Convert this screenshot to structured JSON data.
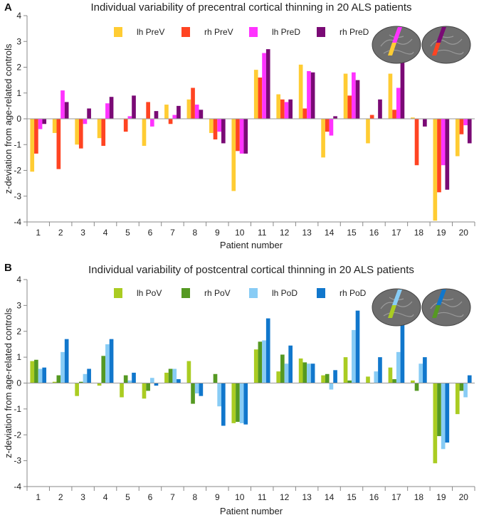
{
  "chart_data": [
    {
      "panel_label": "A",
      "type": "bar",
      "title": "Individual variability of precentral cortical thinning in 20 ALS patients",
      "xlabel": "Patient number",
      "ylabel": "z-deviation from age-related controls",
      "ylim": [
        -4,
        4
      ],
      "yticks": [
        -4,
        -3,
        -2,
        -1,
        0,
        1,
        2,
        3,
        4
      ],
      "categories": [
        "1",
        "2",
        "3",
        "4",
        "5",
        "6",
        "7",
        "8",
        "9",
        "10",
        "11",
        "12",
        "13",
        "14",
        "15",
        "16",
        "17",
        "18",
        "19",
        "20"
      ],
      "legend_position": "top",
      "series": [
        {
          "name": "lh PreV",
          "color": "#FFCC33",
          "values": [
            -2.05,
            -0.55,
            -1.0,
            -0.75,
            0.0,
            -1.05,
            0.55,
            0.75,
            -0.55,
            -2.8,
            1.9,
            0.95,
            2.1,
            -1.5,
            1.75,
            -0.95,
            1.75,
            0.05,
            -3.95,
            -1.45
          ]
        },
        {
          "name": "rh PreV",
          "color": "#FF4422",
          "values": [
            -1.35,
            -1.95,
            -1.15,
            -1.05,
            -0.5,
            0.65,
            -0.2,
            1.2,
            -0.8,
            -1.25,
            1.6,
            0.75,
            0.4,
            -0.5,
            0.9,
            0.15,
            0.35,
            -1.8,
            -2.85,
            -0.6
          ]
        },
        {
          "name": "lh PreD",
          "color": "#FF33FF",
          "values": [
            -0.4,
            1.1,
            -0.2,
            0.6,
            0.1,
            -0.3,
            0.15,
            0.55,
            -0.5,
            -1.35,
            2.55,
            0.65,
            1.85,
            -0.65,
            1.8,
            0.0,
            1.2,
            0.0,
            -1.8,
            -0.25
          ]
        },
        {
          "name": "rh PreD",
          "color": "#7A0A75",
          "values": [
            -0.2,
            0.65,
            0.4,
            0.85,
            0.9,
            0.3,
            0.5,
            0.35,
            -0.95,
            -1.35,
            2.7,
            0.75,
            1.8,
            0.1,
            1.5,
            0.75,
            2.2,
            -0.3,
            -2.75,
            -0.95
          ]
        }
      ]
    },
    {
      "panel_label": "B",
      "type": "bar",
      "title": "Individual variability of postcentral cortical thinning in 20 ALS patients",
      "xlabel": "Patient number",
      "ylabel": "z-deviation from age-related controls",
      "ylim": [
        -4,
        4
      ],
      "yticks": [
        -4,
        -3,
        -2,
        -1,
        0,
        1,
        2,
        3,
        4
      ],
      "categories": [
        "1",
        "2",
        "3",
        "4",
        "5",
        "6",
        "7",
        "8",
        "9",
        "10",
        "11",
        "12",
        "13",
        "14",
        "15",
        "16",
        "17",
        "18",
        "19",
        "20"
      ],
      "legend_position": "top",
      "series": [
        {
          "name": "lh PoV",
          "color": "#AACC22",
          "values": [
            0.85,
            0.05,
            -0.5,
            -0.1,
            -0.55,
            -0.6,
            0.4,
            0.85,
            0.0,
            -1.55,
            1.3,
            0.45,
            0.95,
            0.3,
            1.0,
            0.25,
            0.6,
            0.1,
            -3.1,
            -1.2
          ]
        },
        {
          "name": "rh PoV",
          "color": "#559922",
          "values": [
            0.9,
            0.3,
            0.05,
            1.05,
            0.3,
            -0.3,
            0.55,
            -0.8,
            0.35,
            -1.5,
            1.6,
            1.1,
            0.8,
            0.35,
            0.1,
            0.0,
            0.15,
            -0.3,
            -2.05,
            -0.3
          ]
        },
        {
          "name": "lh PoD",
          "color": "#88CCF5",
          "values": [
            0.55,
            1.2,
            0.35,
            1.5,
            0.1,
            0.2,
            0.55,
            -0.4,
            -0.9,
            -1.55,
            1.65,
            0.75,
            0.75,
            -0.25,
            2.05,
            0.45,
            1.2,
            0.75,
            -2.55,
            -0.55
          ]
        },
        {
          "name": "rh PoD",
          "color": "#1177CC",
          "values": [
            0.6,
            1.7,
            0.55,
            1.7,
            0.4,
            -0.1,
            0.15,
            -0.5,
            -1.65,
            -1.6,
            2.5,
            1.45,
            0.75,
            0.5,
            2.8,
            1.0,
            2.45,
            1.0,
            -2.3,
            0.3
          ]
        }
      ]
    }
  ]
}
